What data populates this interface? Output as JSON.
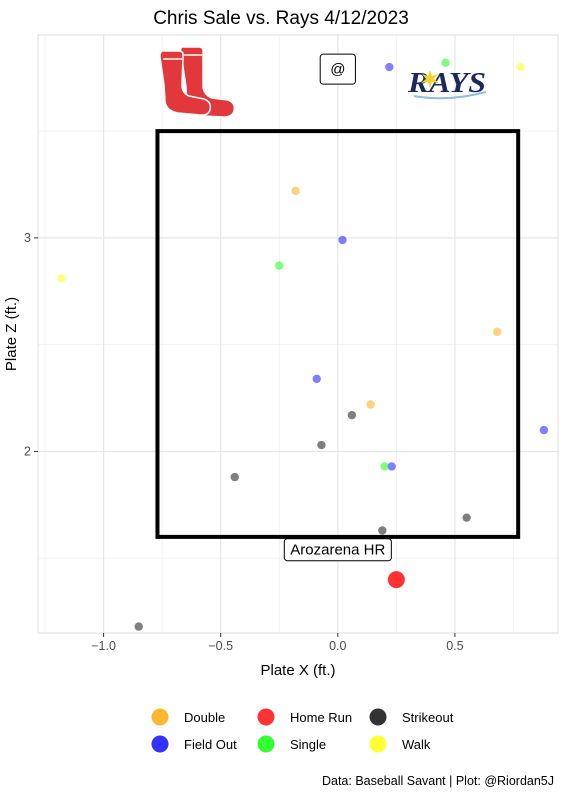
{
  "chart_data": {
    "type": "scatter",
    "title": "Chris Sale vs. Rays 4/12/2023",
    "xlabel": "Plate X (ft.)",
    "ylabel": "Plate Z (ft.)",
    "xlim": [
      -1.28,
      0.94
    ],
    "ylim": [
      1.15,
      3.95
    ],
    "x_ticks": [
      -1.0,
      -0.5,
      0.0,
      0.5
    ],
    "x_tick_labels": [
      "−1.0",
      "−0.5",
      "0.0",
      "0.5"
    ],
    "y_ticks": [
      2,
      3
    ],
    "y_tick_labels": [
      "2",
      "3"
    ],
    "grid": true,
    "strike_zone": {
      "x": [
        -0.77,
        0.77
      ],
      "z": [
        1.6,
        3.5
      ]
    },
    "series": [
      {
        "name": "Double",
        "color": "#ffa500",
        "points": [
          [
            -0.18,
            3.22
          ],
          [
            0.14,
            2.22
          ],
          [
            0.68,
            2.56
          ]
        ]
      },
      {
        "name": "Field Out",
        "color": "#0000ff",
        "points": [
          [
            0.22,
            3.8
          ],
          [
            0.02,
            2.99
          ],
          [
            -0.09,
            2.34
          ],
          [
            0.23,
            1.93
          ],
          [
            0.88,
            2.1
          ]
        ]
      },
      {
        "name": "Home Run",
        "color": "#ff0000",
        "points": [
          [
            0.25,
            1.4
          ]
        ]
      },
      {
        "name": "Single",
        "color": "#00ff00",
        "points": [
          [
            0.46,
            3.82
          ],
          [
            -0.25,
            2.87
          ],
          [
            0.2,
            1.93
          ]
        ]
      },
      {
        "name": "Strikeout",
        "color": "#000000",
        "points": [
          [
            0.06,
            2.17
          ],
          [
            -0.07,
            2.03
          ],
          [
            -0.44,
            1.88
          ],
          [
            0.19,
            1.63
          ],
          [
            0.55,
            1.69
          ],
          [
            -0.85,
            1.18
          ]
        ]
      },
      {
        "name": "Walk",
        "color": "#ffff00",
        "points": [
          [
            -1.18,
            2.81
          ],
          [
            0.78,
            3.8
          ]
        ]
      }
    ],
    "legend": {
      "position": "bottom",
      "items": [
        {
          "label": "Double",
          "color": "#ffa500"
        },
        {
          "label": "Home Run",
          "color": "#ff0000"
        },
        {
          "label": "Strikeout",
          "color": "#000000"
        },
        {
          "label": "Field Out",
          "color": "#0000ff"
        },
        {
          "label": "Single",
          "color": "#00ff00"
        },
        {
          "label": "Walk",
          "color": "#ffff00"
        }
      ]
    },
    "annotations": {
      "hr_label": {
        "text": "Arozarena HR",
        "x": 0.0,
        "z": 1.54
      },
      "at_label": {
        "text": "@",
        "x": 0.0,
        "z": 3.79
      }
    },
    "logos": {
      "away": {
        "name": "red-sox-logo",
        "color": "#e2373b"
      },
      "home": {
        "name": "rays-logo",
        "text": "RAYS",
        "color": "#1b2a5c",
        "accent": "#f5d130"
      }
    },
    "caption": "Data: Baseball Savant | Plot: @Riordan5J"
  }
}
